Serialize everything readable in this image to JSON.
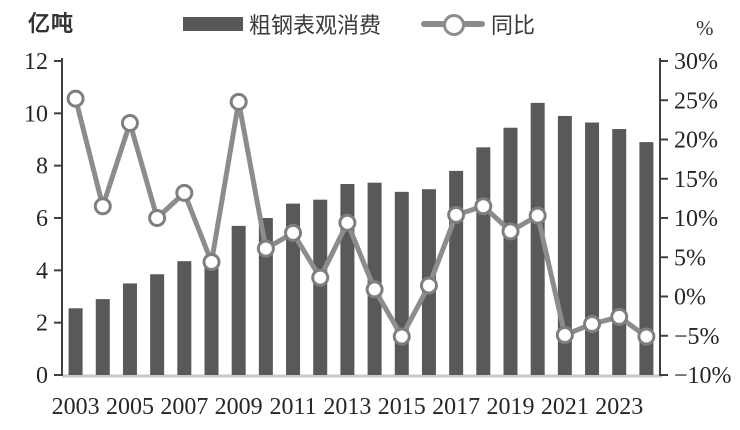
{
  "header": {
    "left_axis_unit": "亿吨",
    "right_axis_unit": "%"
  },
  "legend": {
    "bar_label": "粗钢表观消费",
    "line_label": "同比"
  },
  "colors": {
    "bar": "#595959",
    "line": "#8C8C8C",
    "marker_fill": "#FFFFFF",
    "marker_stroke": "#7F7F7F",
    "axis": "#404040",
    "baseline": "#C8C8C8",
    "text": "#262626"
  },
  "chart_data": {
    "type": "combo",
    "title": "",
    "categories": [
      2003,
      2004,
      2005,
      2006,
      2007,
      2008,
      2009,
      2010,
      2011,
      2012,
      2013,
      2014,
      2015,
      2016,
      2017,
      2018,
      2019,
      2020,
      2021,
      2022,
      2023,
      2024
    ],
    "series": [
      {
        "name": "粗钢表观消费",
        "type": "bar",
        "axis": "left",
        "unit": "亿吨",
        "values": [
          2.55,
          2.9,
          3.5,
          3.85,
          4.35,
          4.55,
          5.7,
          6.0,
          6.55,
          6.7,
          7.3,
          7.35,
          7.0,
          7.1,
          7.8,
          8.7,
          9.45,
          10.4,
          9.9,
          9.65,
          9.4,
          8.9
        ]
      },
      {
        "name": "同比",
        "type": "line",
        "axis": "right",
        "unit": "%",
        "values": [
          25.2,
          11.5,
          22.1,
          10.0,
          13.2,
          4.4,
          24.8,
          6.1,
          8.1,
          2.4,
          9.4,
          0.9,
          -5.1,
          1.4,
          10.4,
          11.5,
          8.3,
          10.3,
          -4.9,
          -3.5,
          -2.6,
          -5.1
        ]
      }
    ],
    "left_axis": {
      "label": "亿吨",
      "min": 0,
      "max": 12,
      "tick_values": [
        0,
        2,
        4,
        6,
        8,
        10,
        12
      ],
      "tick_labels": [
        "0",
        "2",
        "4",
        "6",
        "8",
        "10",
        "12"
      ]
    },
    "right_axis": {
      "label": "%",
      "min": -10,
      "max": 30,
      "tick_values": [
        -10,
        -5,
        0,
        5,
        10,
        15,
        20,
        25,
        30
      ],
      "tick_labels": [
        "−10%",
        "−5%",
        "0%",
        "5%",
        "10%",
        "15%",
        "20%",
        "25%",
        "30%"
      ]
    },
    "x_axis": {
      "tick_every": 2,
      "tick_labels": [
        "2003",
        "2005",
        "2007",
        "2009",
        "2011",
        "2013",
        "2015",
        "2017",
        "2019",
        "2021",
        "2023"
      ]
    },
    "grid": "off",
    "legend_position": "top"
  }
}
